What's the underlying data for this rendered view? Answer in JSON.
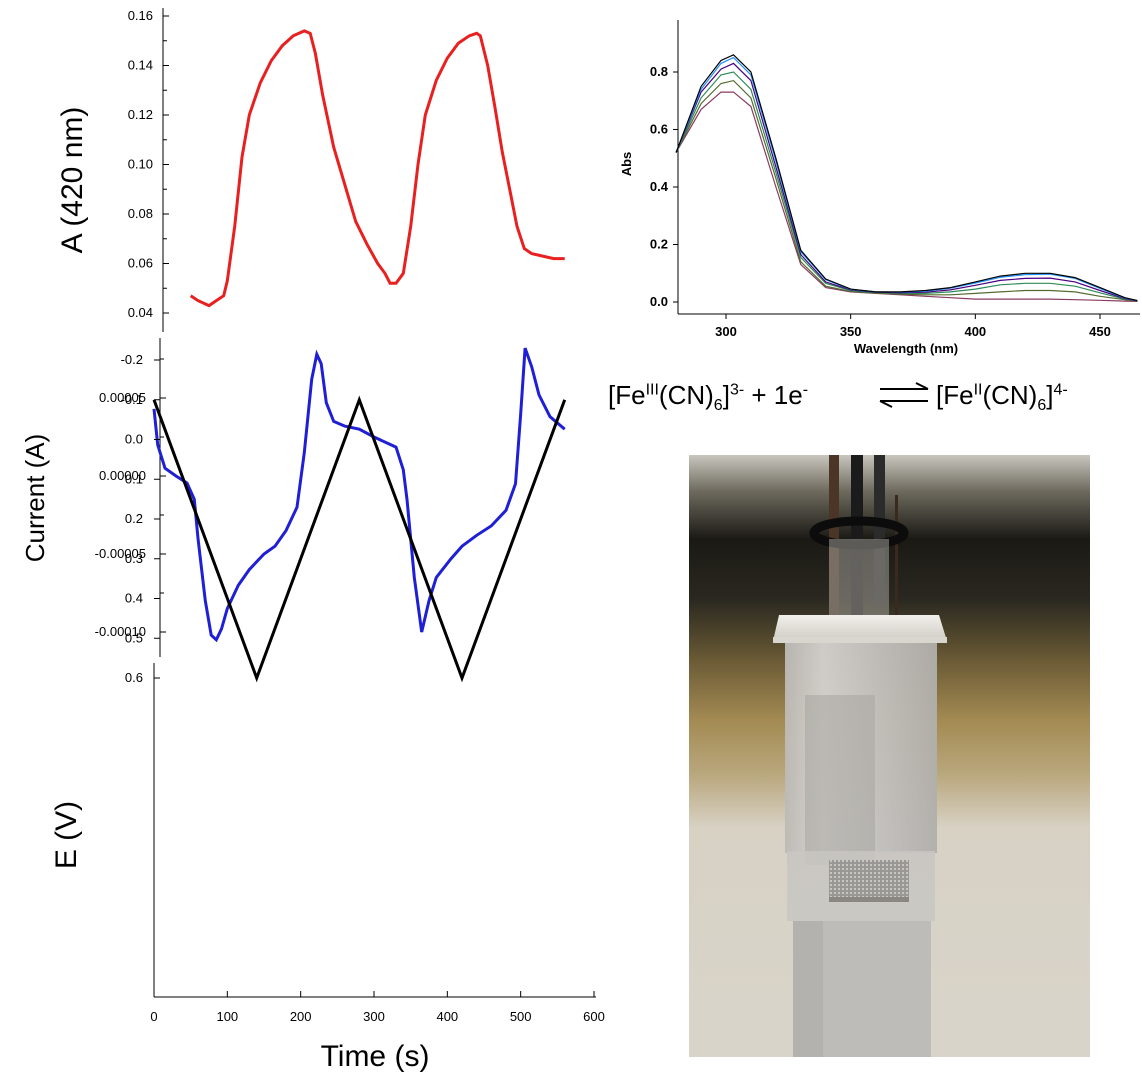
{
  "chart_data": [
    {
      "type": "line",
      "ylabel": "A (420 nm)",
      "y_ticks": [
        "0.04",
        "0.06",
        "0.08",
        "0.10",
        "0.12",
        "0.14",
        "0.16"
      ],
      "ylim": [
        0.035,
        0.165
      ],
      "xlim": [
        0,
        600
      ],
      "color": "#e8201f",
      "series": [
        {
          "x": [
            50,
            60,
            75,
            85,
            95,
            100,
            110,
            120,
            130,
            145,
            160,
            175,
            190,
            205,
            213,
            220,
            230,
            245,
            260,
            275,
            290,
            305,
            315,
            322,
            330,
            340,
            350,
            360,
            370,
            385,
            400,
            415,
            430,
            440,
            445,
            455,
            465,
            475,
            485,
            495,
            505,
            515,
            530,
            545,
            560
          ],
          "y": [
            0.047,
            0.045,
            0.043,
            0.045,
            0.047,
            0.053,
            0.075,
            0.103,
            0.12,
            0.133,
            0.142,
            0.148,
            0.152,
            0.154,
            0.153,
            0.145,
            0.128,
            0.107,
            0.092,
            0.077,
            0.068,
            0.06,
            0.056,
            0.052,
            0.052,
            0.056,
            0.075,
            0.1,
            0.12,
            0.134,
            0.143,
            0.149,
            0.152,
            0.153,
            0.152,
            0.14,
            0.123,
            0.105,
            0.09,
            0.075,
            0.066,
            0.064,
            0.063,
            0.062,
            0.062
          ]
        }
      ]
    },
    {
      "type": "line",
      "ylabel": "Current (A)",
      "y_ticks": [
        "0.00005",
        "0.00000",
        "-0.00005",
        "-0.00010"
      ],
      "ylim": [
        -0.00011,
        8.5e-05
      ],
      "xlim": [
        0,
        600
      ],
      "color": "#1f1fd6",
      "series": [
        {
          "x": [
            0,
            5,
            15,
            30,
            45,
            55,
            60,
            70,
            78,
            85,
            92,
            100,
            115,
            130,
            150,
            165,
            180,
            195,
            205,
            215,
            222,
            228,
            235,
            245,
            260,
            280,
            300,
            330,
            340,
            345,
            355,
            365,
            375,
            385,
            405,
            420,
            440,
            460,
            480,
            493,
            500,
            506,
            515,
            525,
            540,
            560
          ],
          "y": [
            4.3e-05,
            2e-05,
            5e-06,
            0.0,
            -4.5e-06,
            -1.5e-05,
            -4e-05,
            -8e-05,
            -0.000102,
            -0.000105,
            -9.8e-05,
            -8.5e-05,
            -7e-05,
            -6e-05,
            -5e-05,
            -4.5e-05,
            -3.5e-05,
            -2e-05,
            1.5e-05,
            6.2e-05,
            7.8e-05,
            7.2e-05,
            4.7e-05,
            3.5e-05,
            3.2e-05,
            3e-05,
            2.5e-05,
            1.85e-05,
            4e-06,
            -1.5e-05,
            -6.5e-05,
            -0.0001,
            -8e-05,
            -6.5e-05,
            -5.3e-05,
            -4.5e-05,
            -3.8e-05,
            -3.2e-05,
            -2.2e-05,
            -5e-06,
            4e-05,
            8.2e-05,
            7e-05,
            5.2e-05,
            3.8e-05,
            3e-05
          ]
        }
      ]
    },
    {
      "type": "line",
      "xlabel": "Time (s)",
      "ylabel": "E (V)",
      "x_ticks": [
        "0",
        "100",
        "200",
        "300",
        "400",
        "500",
        "600"
      ],
      "y_ticks": [
        "-0.2",
        "-0.1",
        "0.0",
        "0.1",
        "0.2",
        "0.3",
        "0.4",
        "0.5",
        "0.6"
      ],
      "ylim": [
        -0.2,
        0.65
      ],
      "xlim": [
        0,
        600
      ],
      "color": "#000000",
      "series": [
        {
          "x": [
            0,
            140,
            280,
            420,
            560
          ],
          "y": [
            -0.1,
            0.6,
            -0.1,
            0.6,
            -0.1
          ]
        }
      ]
    },
    {
      "type": "line",
      "xlabel": "Wavelength (nm)",
      "ylabel": "Abs",
      "x_ticks": [
        "300",
        "350",
        "400",
        "450"
      ],
      "y_ticks": [
        "0.0",
        "0.2",
        "0.4",
        "0.6",
        "0.8"
      ],
      "xlim": [
        280,
        465
      ],
      "ylim": [
        -0.02,
        0.97
      ],
      "x": [
        280,
        290,
        298,
        303,
        310,
        320,
        330,
        340,
        350,
        360,
        370,
        380,
        390,
        400,
        410,
        420,
        430,
        440,
        450,
        460,
        465
      ],
      "base_shape": [
        0.52,
        0.75,
        0.84,
        0.86,
        0.8,
        0.5,
        0.18,
        0.08,
        0.045,
        0.035,
        0.035,
        0.04,
        0.05,
        0.07,
        0.09,
        0.1,
        0.1,
        0.085,
        0.05,
        0.015,
        0.005
      ],
      "series": [
        {
          "color": "#8b3a62",
          "values": [
            0.52,
            0.67,
            0.73,
            0.73,
            0.68,
            0.4,
            0.13,
            0.05,
            0.035,
            0.03,
            0.025,
            0.02,
            0.015,
            0.01,
            0.01,
            0.01,
            0.01,
            0.008,
            0.006,
            0.003,
            0.002
          ]
        },
        {
          "color": "#556b2f",
          "values": [
            0.52,
            0.69,
            0.76,
            0.77,
            0.71,
            0.43,
            0.14,
            0.055,
            0.037,
            0.031,
            0.027,
            0.025,
            0.025,
            0.03,
            0.035,
            0.04,
            0.04,
            0.035,
            0.02,
            0.008,
            0.003
          ]
        },
        {
          "color": "#2e8b57",
          "values": [
            0.52,
            0.71,
            0.79,
            0.8,
            0.74,
            0.45,
            0.155,
            0.065,
            0.04,
            0.033,
            0.03,
            0.03,
            0.035,
            0.045,
            0.06,
            0.065,
            0.065,
            0.055,
            0.032,
            0.01,
            0.004
          ]
        },
        {
          "color": "#4b0082",
          "values": [
            0.52,
            0.73,
            0.81,
            0.83,
            0.77,
            0.47,
            0.165,
            0.07,
            0.042,
            0.034,
            0.032,
            0.034,
            0.042,
            0.058,
            0.075,
            0.082,
            0.083,
            0.07,
            0.04,
            0.012,
            0.004
          ]
        },
        {
          "color": "#1e90ff",
          "values": [
            0.52,
            0.74,
            0.83,
            0.85,
            0.79,
            0.49,
            0.175,
            0.078,
            0.044,
            0.035,
            0.034,
            0.038,
            0.048,
            0.066,
            0.086,
            0.095,
            0.097,
            0.082,
            0.047,
            0.014,
            0.005
          ]
        },
        {
          "color": "#000000",
          "values": [
            0.52,
            0.75,
            0.84,
            0.86,
            0.8,
            0.5,
            0.18,
            0.08,
            0.045,
            0.035,
            0.035,
            0.04,
            0.05,
            0.07,
            0.09,
            0.1,
            0.1,
            0.085,
            0.05,
            0.015,
            0.005
          ]
        }
      ]
    }
  ],
  "equation": {
    "left_prefix": "[Fe",
    "left_ox": "III",
    "left_mid": "(CN)",
    "left_sub": "6",
    "left_close": "]",
    "left_charge": "3-",
    "left_plus": " + 1e",
    "left_e_charge": "-",
    "right_prefix": "[Fe",
    "right_ox": "II",
    "right_mid": "(CN)",
    "right_sub": "6",
    "right_close": "]",
    "right_charge": "4-"
  }
}
